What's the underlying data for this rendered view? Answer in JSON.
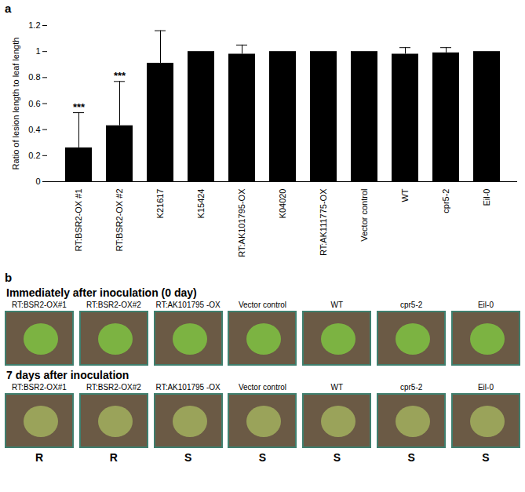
{
  "chart_data": {
    "type": "bar",
    "title": "a",
    "categories": [
      "RT:BSR2-OX #1",
      "RT:BSR2-OX #2",
      "K21617",
      "K15424",
      "RT:AK101795-OX",
      "K04020",
      "RT:AK111775-OX",
      "Vector control",
      "WT",
      "cpr5-2",
      "Eil-0"
    ],
    "values": [
      0.26,
      0.43,
      0.91,
      1,
      0.98,
      1,
      1,
      1,
      0.98,
      0.99,
      1
    ],
    "errors": [
      0.27,
      0.34,
      0.25,
      0,
      0.07,
      0,
      0,
      0,
      0.05,
      0.04,
      0
    ],
    "significance": [
      "***",
      "***",
      null,
      null,
      null,
      null,
      null,
      null,
      null,
      null,
      null
    ],
    "color": "#000000",
    "ylabel": "Ratio of lesion length to leaf length",
    "ylim": [
      0,
      1.2
    ],
    "yticks": [
      0,
      0.2,
      0.4,
      0.6,
      0.8,
      1,
      1.2
    ]
  },
  "panel_b": {
    "label": "b",
    "rows": [
      {
        "title": "Immediately after inoculation (0 day)",
        "genotypes": [
          "RT:BSR2-OX#1",
          "RT:BSR2-OX#2",
          "RT:AK101795 -OX",
          "Vector control",
          "WT",
          "cpr5-2",
          "Eil-0"
        ]
      },
      {
        "title": "7 days after inoculation",
        "genotypes": [
          "RT:BSR2-OX#1",
          "RT:BSR2-OX#2",
          "RT:AK101795 -OX",
          "Vector control",
          "WT",
          "cpr5-2",
          "Eil-0"
        ]
      }
    ],
    "phenotypes": [
      "R",
      "R",
      "S",
      "S",
      "S",
      "S",
      "S"
    ]
  }
}
